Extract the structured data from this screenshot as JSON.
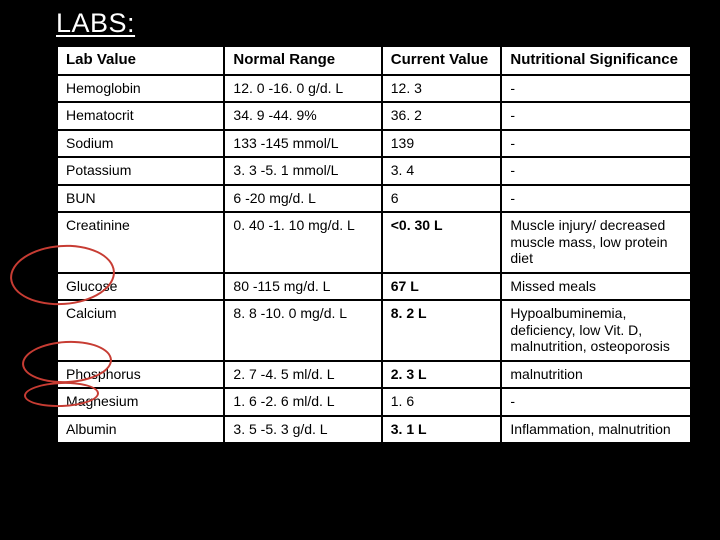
{
  "title": "LABS:",
  "columns": [
    "Lab Value",
    "Normal Range",
    "Current Value",
    "Nutritional Significance"
  ],
  "rows": [
    {
      "lab": "Hemoglobin",
      "range": "12. 0 -16. 0 g/d. L",
      "value": "12. 3",
      "sig": "-"
    },
    {
      "lab": "Hematocrit",
      "range": "34. 9 -44. 9%",
      "value": "36. 2",
      "sig": "-"
    },
    {
      "lab": "Sodium",
      "range": "133 -145 mmol/L",
      "value": "139",
      "sig": "-"
    },
    {
      "lab": "Potassium",
      "range": "3. 3 -5. 1 mmol/L",
      "value": "3. 4",
      "sig": "-"
    },
    {
      "lab": "BUN",
      "range": "6 -20 mg/d. L",
      "value": "6",
      "sig": "-"
    },
    {
      "lab": "Creatinine",
      "range": "0. 40 -1. 10 mg/d. L",
      "value": "<0. 30 L",
      "sig": "Muscle injury/ decreased muscle mass, low protein diet"
    },
    {
      "lab": "Glucose",
      "range": "80 -115 mg/d. L",
      "value": "67 L",
      "sig": "Missed meals"
    },
    {
      "lab": "Calcium",
      "range": "8. 8 -10. 0 mg/d. L",
      "value": "8. 2 L",
      "sig": "Hypoalbuminemia, deficiency, low Vit. D, malnutrition, osteoporosis"
    },
    {
      "lab": "Phosphorus",
      "range": "2. 7 -4. 5 ml/d. L",
      "value": "2. 3 L",
      "sig": "malnutrition"
    },
    {
      "lab": "Magnesium",
      "range": "1. 6 -2. 6 ml/d. L",
      "value": "1. 6",
      "sig": "-"
    },
    {
      "lab": "Albumin",
      "range": "3. 5 -5. 3 g/d. L",
      "value": "3. 1 L",
      "sig": "Inflammation, malnutrition"
    }
  ],
  "bold_value_rows": [
    5,
    6,
    7,
    8,
    10
  ],
  "annotation_color": "#c73c33"
}
